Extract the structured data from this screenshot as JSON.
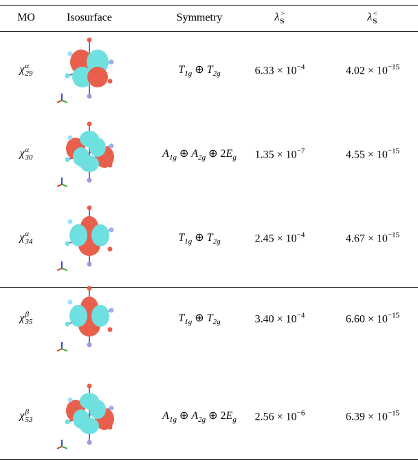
{
  "table": {
    "header": [
      [
        {
          "text": "MO"
        }
      ],
      [
        {
          "text": "Isosurface"
        }
      ],
      [
        {
          "text": "Symmetry"
        }
      ],
      [
        {
          "text": "λ",
          "sub": "S",
          "sup": ">"
        }
      ],
      [
        {
          "text": "λ",
          "sub": "S",
          "sup": "<"
        }
      ]
    ],
    "rows": [
      {
        "mo": [
          {
            "text": "χ",
            "sub": "29",
            "sup": "α"
          }
        ],
        "symmetry": [
          {
            "text": "T",
            "sub": "1g"
          },
          {
            "text": " ⊕ "
          },
          {
            "text": "T",
            "sub": "2g"
          }
        ],
        "lambda_gt": [
          {
            "text": "6.33 × 10",
            "sup": "−4"
          }
        ],
        "lambda_lt": [
          {
            "text": "4.02 × 10",
            "sup": "−15"
          }
        ]
      },
      {
        "mo": [
          {
            "text": "χ",
            "sub": "30",
            "sup": "α"
          }
        ],
        "symmetry": [
          {
            "text": "A",
            "sub": "1g"
          },
          {
            "text": " ⊕ "
          },
          {
            "text": "A",
            "sub": "2g"
          },
          {
            "text": " ⊕ 2"
          },
          {
            "text": "E",
            "sub": "g"
          }
        ],
        "lambda_gt": [
          {
            "text": "1.35 × 10",
            "sup": "−7"
          }
        ],
        "lambda_lt": [
          {
            "text": "4.55 × 10",
            "sup": "−15"
          }
        ]
      },
      {
        "mo": [
          {
            "text": "χ",
            "sub": "34",
            "sup": "α"
          }
        ],
        "symmetry": [
          {
            "text": "T",
            "sub": "1g"
          },
          {
            "text": " ⊕ "
          },
          {
            "text": "T",
            "sub": "2g"
          }
        ],
        "lambda_gt": [
          {
            "text": "2.45 × 10",
            "sup": "−4"
          }
        ],
        "lambda_lt": [
          {
            "text": "4.67 × 10",
            "sup": "−15"
          }
        ]
      },
      {
        "mo": [
          {
            "text": "χ",
            "sub": "35",
            "sup": "β"
          }
        ],
        "symmetry": [
          {
            "text": "T",
            "sub": "1g"
          },
          {
            "text": " ⊕ "
          },
          {
            "text": "T",
            "sub": "2g"
          }
        ],
        "lambda_gt": [
          {
            "text": "3.40 × 10",
            "sup": "−4"
          }
        ],
        "lambda_lt": [
          {
            "text": "6.60 × 10",
            "sup": "−15"
          }
        ]
      },
      {
        "mo": [
          {
            "text": "χ",
            "sub": "53",
            "sup": "β"
          }
        ],
        "symmetry": [
          {
            "text": "A",
            "sub": "1g"
          },
          {
            "text": " ⊕ "
          },
          {
            "text": "A",
            "sub": "2g"
          },
          {
            "text": " ⊕ 2"
          },
          {
            "text": "E",
            "sub": "g"
          }
        ],
        "lambda_gt": [
          {
            "text": "2.56 × 10",
            "sup": "−6"
          }
        ],
        "lambda_lt": [
          {
            "text": "6.39 × 10",
            "sup": "−15"
          }
        ]
      }
    ]
  }
}
